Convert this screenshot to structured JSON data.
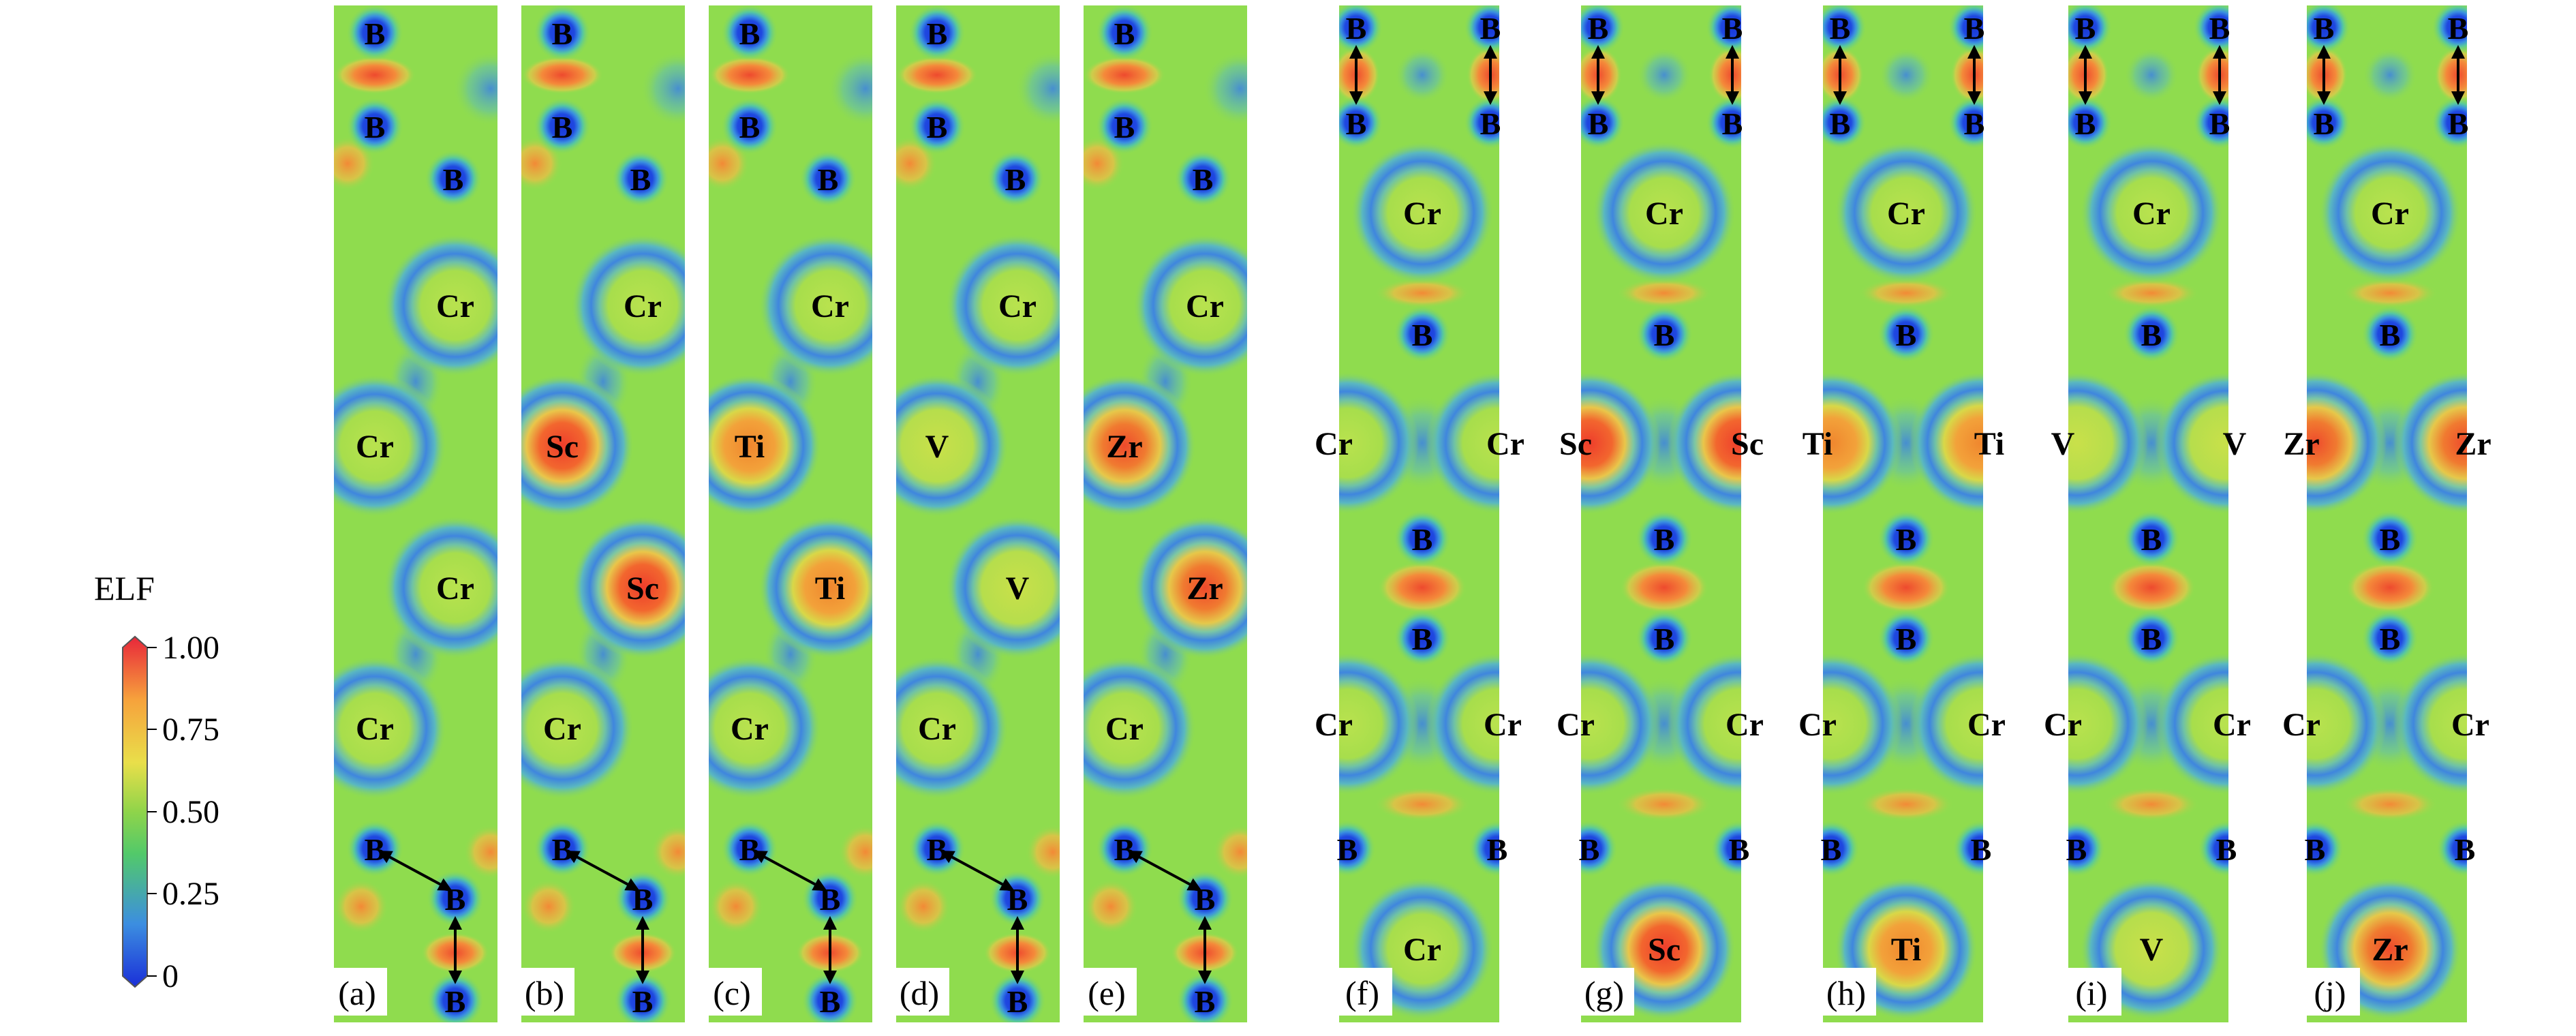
{
  "colorbar": {
    "title": "ELF",
    "ticks": [
      "1.00",
      "0.75",
      "0.50",
      "0.25",
      "0"
    ],
    "stops": [
      "#e8263a",
      "#f6a23c",
      "#e9df4a",
      "#8fd44a",
      "#52c96a",
      "#3c8ee0",
      "#1a2fd8"
    ]
  },
  "colors": {
    "background": "#8fdc4e",
    "low": "#3f86de",
    "mid": "#a6e050",
    "high": "#f08a3a",
    "peak": "#ee4a2e",
    "atom_core": "#1836d8"
  },
  "panels": [
    {
      "id": "a",
      "label": "(a)",
      "style": "A",
      "atoms": [
        "B",
        "B",
        "B",
        "Cr",
        "Cr",
        "Cr",
        "Cr",
        "B",
        "B",
        "B"
      ],
      "X": "Cr"
    },
    {
      "id": "b",
      "label": "(b)",
      "style": "A",
      "atoms": [
        "B",
        "B",
        "B",
        "Cr",
        "Sc",
        "Sc",
        "Cr",
        "B",
        "B",
        "B"
      ],
      "X": "Sc"
    },
    {
      "id": "c",
      "label": "(c)",
      "style": "A",
      "atoms": [
        "B",
        "B",
        "B",
        "Cr",
        "Ti",
        "Ti",
        "Cr",
        "B",
        "B",
        "B"
      ],
      "X": "Ti"
    },
    {
      "id": "d",
      "label": "(d)",
      "style": "A",
      "atoms": [
        "B",
        "B",
        "B",
        "Cr",
        "V",
        "V",
        "Cr",
        "B",
        "B",
        "B"
      ],
      "X": "V"
    },
    {
      "id": "e",
      "label": "(e)",
      "style": "A",
      "atoms": [
        "B",
        "B",
        "B",
        "Cr",
        "Zr",
        "Zr",
        "Cr",
        "B",
        "B",
        "B"
      ],
      "X": "Zr"
    },
    {
      "id": "f",
      "label": "(f)",
      "style": "B",
      "atoms": [
        "B",
        "B",
        "B",
        "B",
        "Cr",
        "B",
        "Cr",
        "Cr",
        "B",
        "B",
        "Cr",
        "Cr",
        "B",
        "B",
        "Cr"
      ],
      "X": "Cr"
    },
    {
      "id": "g",
      "label": "(g)",
      "style": "B",
      "atoms": [
        "B",
        "B",
        "B",
        "B",
        "Cr",
        "B",
        "Sc",
        "Sc",
        "B",
        "B",
        "Cr",
        "Cr",
        "B",
        "B",
        "Sc"
      ],
      "X": "Sc"
    },
    {
      "id": "h",
      "label": "(h)",
      "style": "B",
      "atoms": [
        "B",
        "B",
        "B",
        "B",
        "Cr",
        "B",
        "Ti",
        "Ti",
        "B",
        "B",
        "Cr",
        "Cr",
        "B",
        "B",
        "Ti"
      ],
      "X": "Ti"
    },
    {
      "id": "i",
      "label": "(i)",
      "style": "B",
      "atoms": [
        "B",
        "B",
        "B",
        "B",
        "Cr",
        "B",
        "V",
        "V",
        "B",
        "B",
        "Cr",
        "Cr",
        "B",
        "B",
        "V"
      ],
      "X": "V"
    },
    {
      "id": "j",
      "label": "(j)",
      "style": "B",
      "atoms": [
        "B",
        "B",
        "B",
        "B",
        "Cr",
        "B",
        "Zr",
        "Zr",
        "B",
        "B",
        "Cr",
        "Cr",
        "B",
        "B",
        "Zr"
      ],
      "X": "Zr"
    }
  ]
}
